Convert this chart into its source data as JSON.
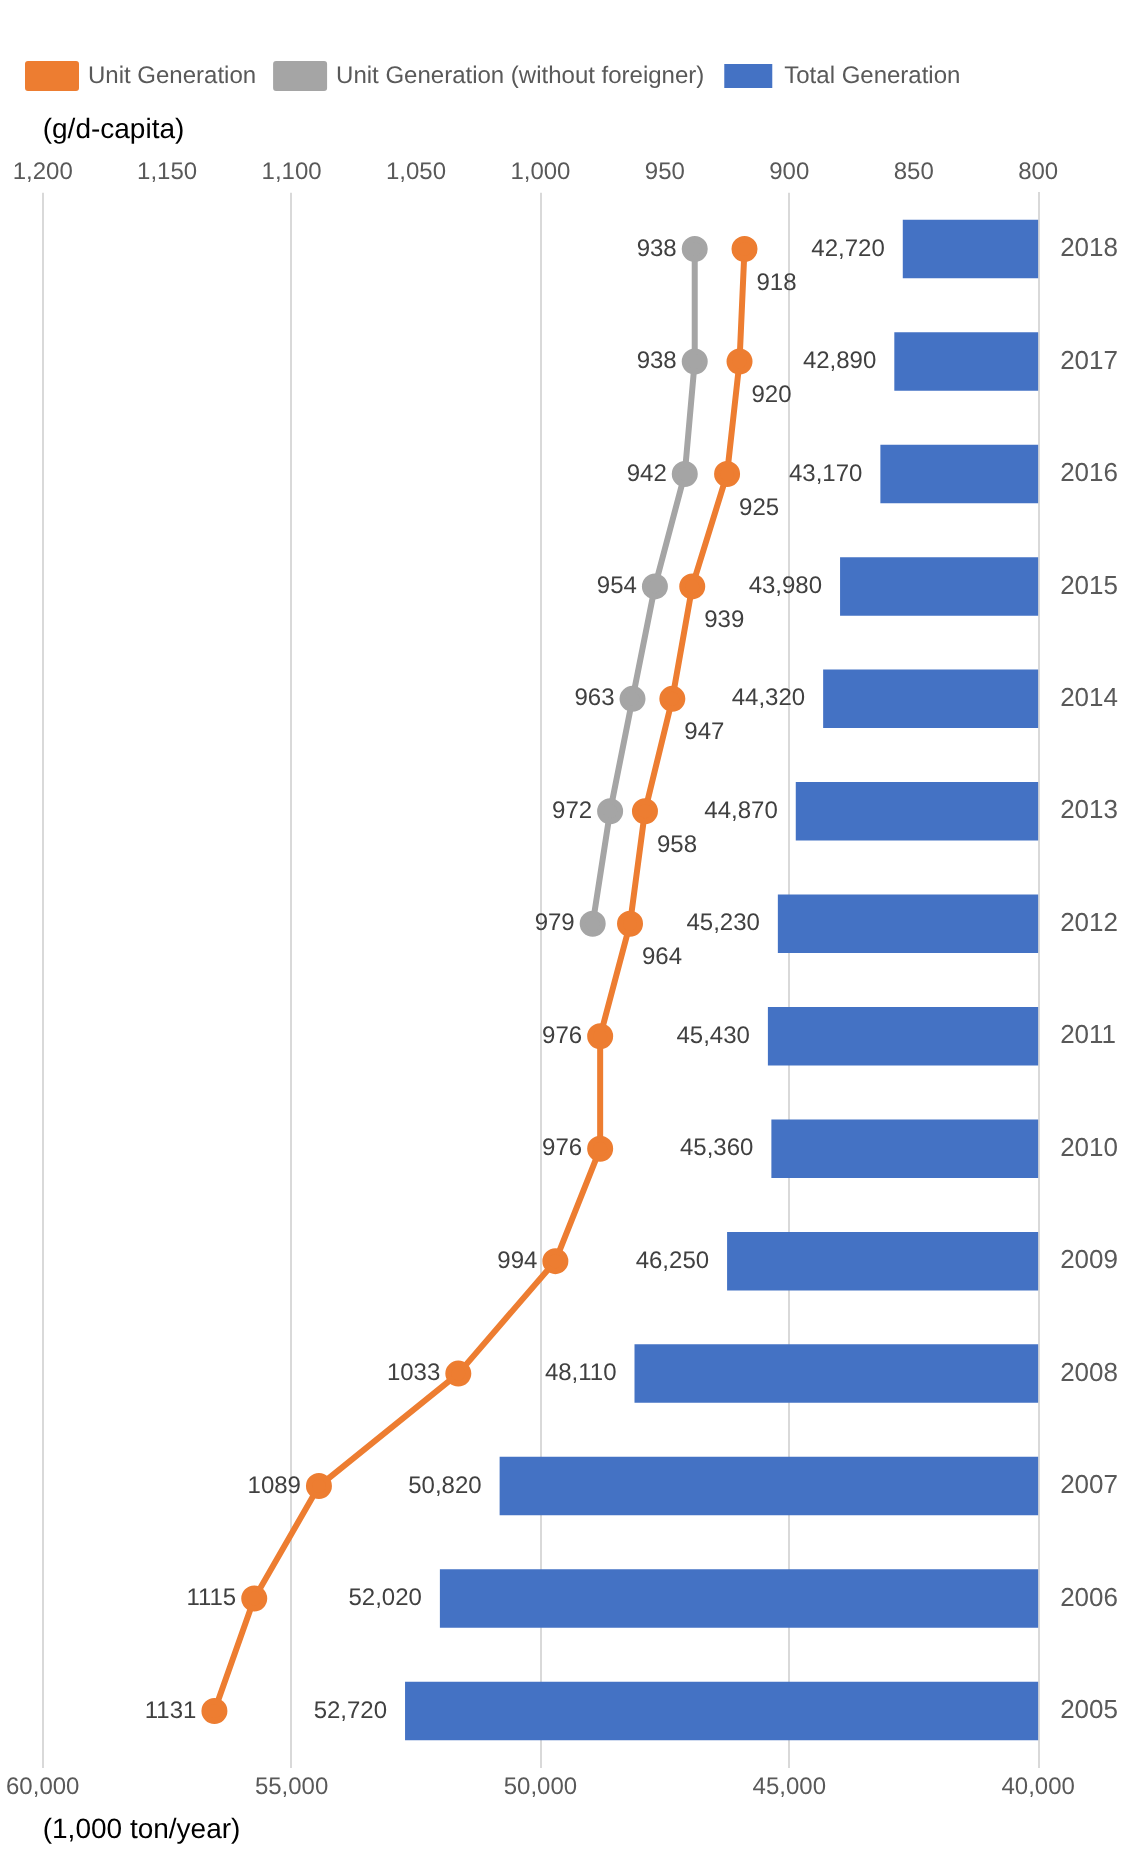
{
  "chart_data": {
    "type": "bar",
    "orientation": "horizontal",
    "xlabel": "(1,000 ton/year)",
    "x2label": "(g/d-capita)",
    "categories": [
      "2018",
      "2017",
      "2016",
      "2015",
      "2014",
      "2013",
      "2012",
      "2011",
      "2010",
      "2009",
      "2008",
      "2007",
      "2006",
      "2005"
    ],
    "series": [
      {
        "name": "Total Generation",
        "color": "#4472c4",
        "values": [
          42720,
          42890,
          43170,
          43980,
          44320,
          44870,
          45230,
          45430,
          45360,
          46250,
          48110,
          50820,
          52020,
          52720
        ],
        "value_labels": [
          "42,720",
          "42,890",
          "43,170",
          "43,980",
          "44,320",
          "44,870",
          "45,230",
          "45,430",
          "45,360",
          "46,250",
          "48,110",
          "50,820",
          "52,020",
          "52,720"
        ]
      },
      {
        "name": "Unit Generation",
        "type": "line",
        "axis": "x2",
        "color": "#ed7d31",
        "values": [
          918,
          920,
          925,
          939,
          947,
          958,
          964,
          976,
          976,
          994,
          1033,
          1089,
          1115,
          1131
        ]
      },
      {
        "name": "Unit Generation (without foreigner)",
        "type": "line",
        "axis": "x2",
        "color": "#a5a5a5",
        "values": [
          938,
          938,
          942,
          954,
          963,
          972,
          979,
          null,
          null,
          null,
          null,
          null,
          null,
          null
        ]
      }
    ],
    "xlim": [
      60000,
      40000
    ],
    "xticks": [
      {
        "value": 60000,
        "label": "60,000"
      },
      {
        "value": 55000,
        "label": "55,000"
      },
      {
        "value": 50000,
        "label": "50,000"
      },
      {
        "value": 45000,
        "label": "45,000"
      },
      {
        "value": 40000,
        "label": "40,000"
      }
    ],
    "x2lim": [
      1200,
      800
    ],
    "x2ticks": [
      {
        "value": 1200,
        "label": "1,200"
      },
      {
        "value": 1150,
        "label": "1,150"
      },
      {
        "value": 1100,
        "label": "1,100"
      },
      {
        "value": 1050,
        "label": "1,050"
      },
      {
        "value": 1000,
        "label": "1,000"
      },
      950,
      900,
      850,
      800
    ],
    "grid": "x",
    "legend": "top",
    "marker": "circle",
    "line_style": "solid",
    "data_labels": true
  }
}
